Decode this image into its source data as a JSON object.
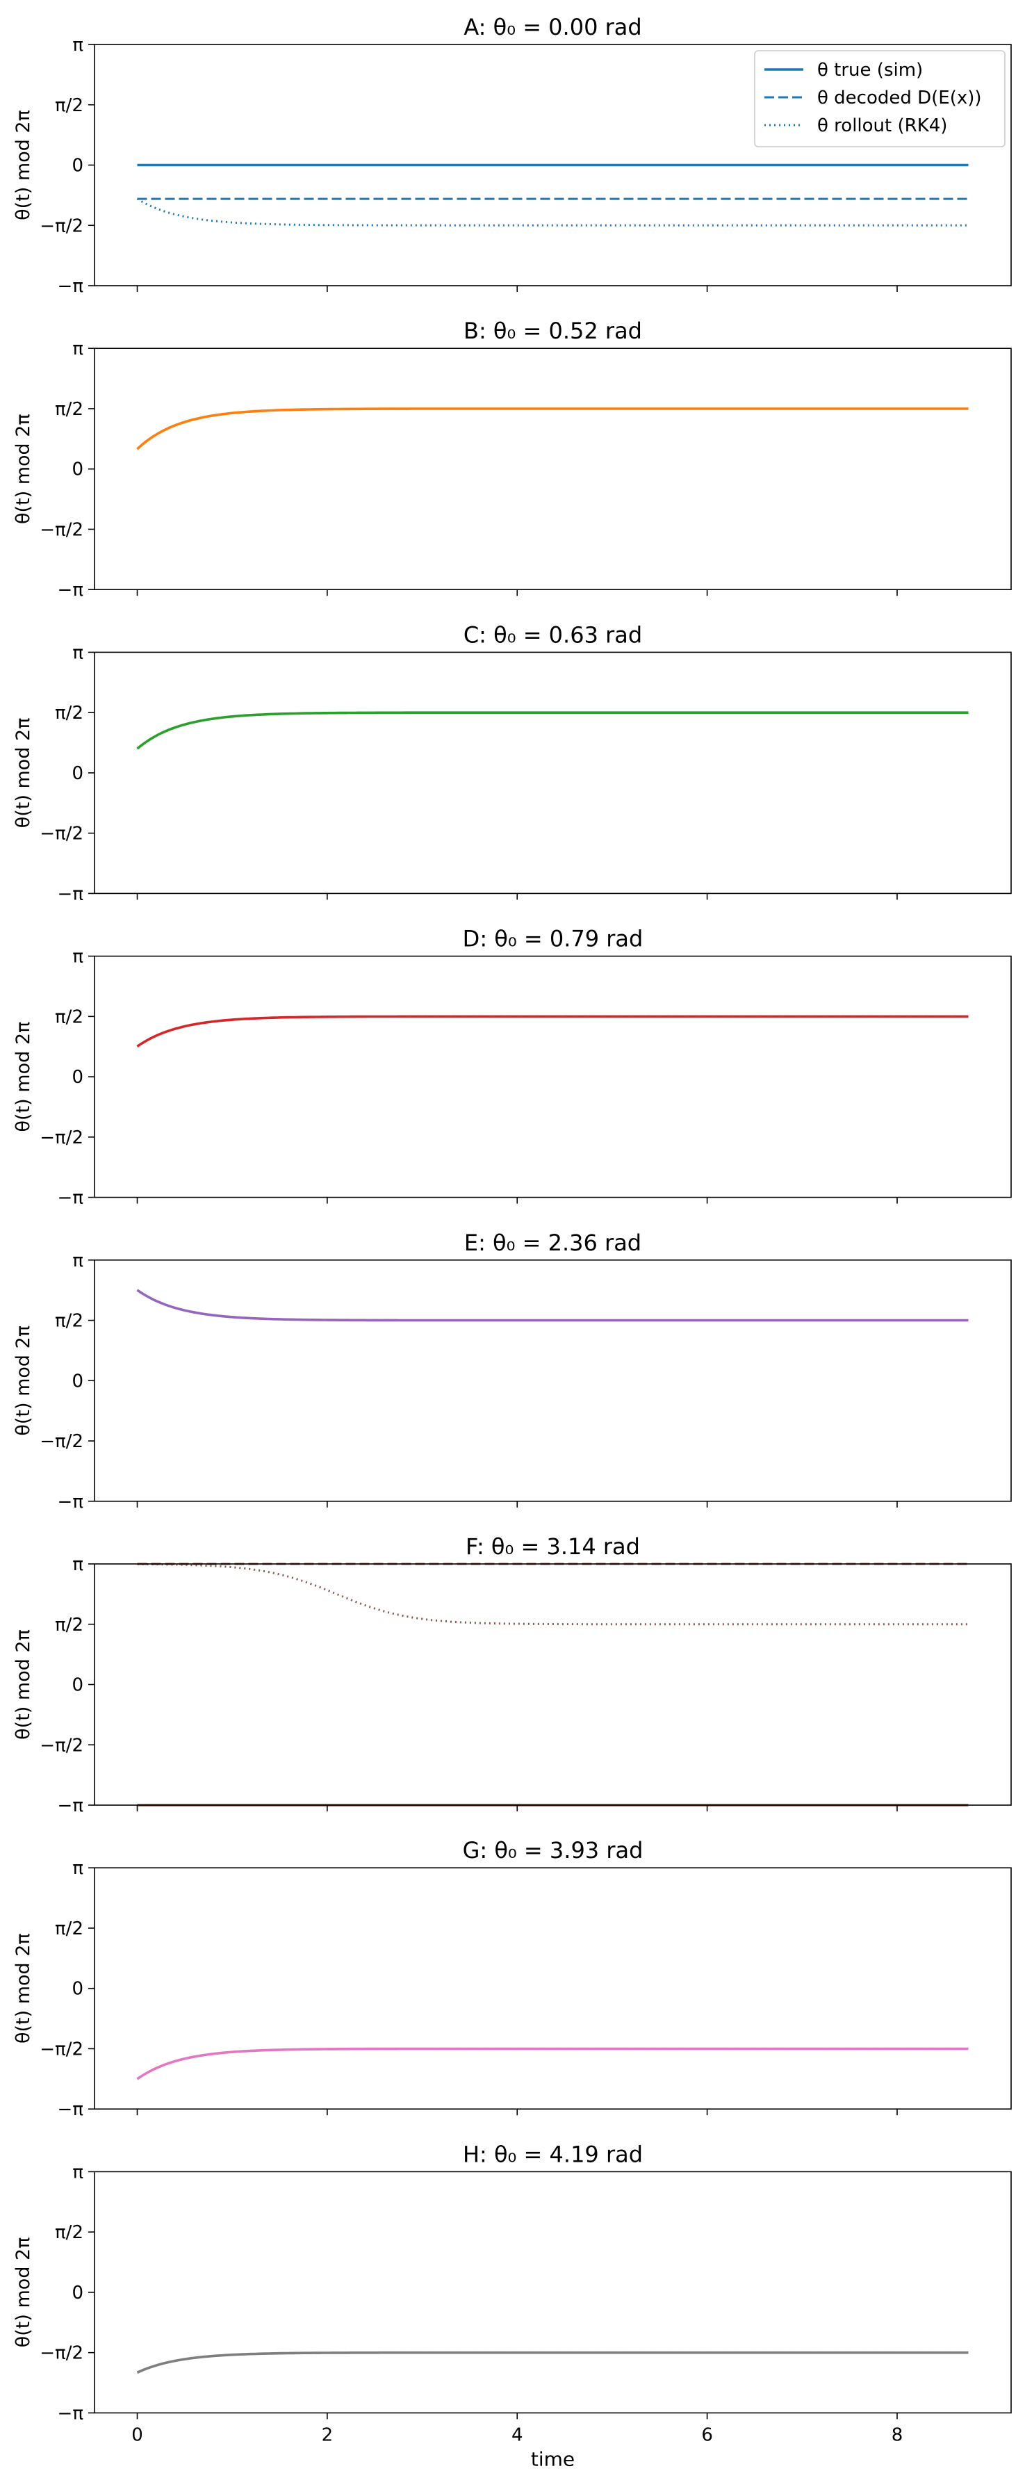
{
  "figure": {
    "xlabel": "time",
    "ylabel": "θ(t) mod 2π",
    "ytick_labels": [
      "−π",
      "−π/2",
      "0",
      "π/2",
      "π"
    ],
    "xtick_labels": [
      "0",
      "2",
      "4",
      "6",
      "8"
    ]
  },
  "legend": {
    "entries": [
      {
        "label": "θ true (sim)",
        "style": "solid"
      },
      {
        "label": "θ decoded D(E(x))",
        "style": "dashed"
      },
      {
        "label": "θ rollout (RK4)",
        "style": "dotted"
      }
    ]
  },
  "chart_data": [
    {
      "type": "line",
      "title": "A: θ₀ = 0.00 rad",
      "xlabel": "time",
      "ylabel": "θ(t) mod 2π",
      "xlim": [
        -0.45,
        9.2
      ],
      "ylim": [
        -3.1416,
        3.1416
      ],
      "yticks": [
        -3.1416,
        -1.5708,
        0,
        1.5708,
        3.1416
      ],
      "xticks": [
        0,
        2,
        4,
        6,
        8
      ],
      "color": "#1f77b4",
      "series": [
        {
          "name": "θ true (sim)",
          "style": "solid",
          "kind": "const",
          "value": 0.0
        },
        {
          "name": "θ decoded D(E(x))",
          "style": "dashed",
          "kind": "const",
          "value": -0.88
        },
        {
          "name": "θ rollout (RK4)",
          "style": "dotted",
          "kind": "relax",
          "y0": -0.88,
          "yf": -1.57,
          "tau": 0.45
        }
      ]
    },
    {
      "type": "line",
      "title": "B: θ₀ = 0.52 rad",
      "xlabel": "time",
      "ylabel": "θ(t) mod 2π",
      "xlim": [
        -0.45,
        9.2
      ],
      "ylim": [
        -3.1416,
        3.1416
      ],
      "yticks": [
        -3.1416,
        -1.5708,
        0,
        1.5708,
        3.1416
      ],
      "xticks": [
        0,
        2,
        4,
        6,
        8
      ],
      "color": "#ff7f0e",
      "series": [
        {
          "name": "θ true (sim)",
          "style": "solid",
          "kind": "relax",
          "y0": 0.52,
          "yf": 1.5708,
          "tau": 0.45
        },
        {
          "name": "θ decoded D(E(x))",
          "style": "dashed",
          "kind": "relax",
          "y0": 0.52,
          "yf": 1.5708,
          "tau": 0.45
        },
        {
          "name": "θ rollout (RK4)",
          "style": "dotted",
          "kind": "relax",
          "y0": 0.52,
          "yf": 1.5708,
          "tau": 0.45
        }
      ]
    },
    {
      "type": "line",
      "title": "C: θ₀ = 0.63 rad",
      "xlabel": "time",
      "ylabel": "θ(t) mod 2π",
      "xlim": [
        -0.45,
        9.2
      ],
      "ylim": [
        -3.1416,
        3.1416
      ],
      "yticks": [
        -3.1416,
        -1.5708,
        0,
        1.5708,
        3.1416
      ],
      "xticks": [
        0,
        2,
        4,
        6,
        8
      ],
      "color": "#2ca02c",
      "series": [
        {
          "name": "θ true (sim)",
          "style": "solid",
          "kind": "relax",
          "y0": 0.63,
          "yf": 1.5708,
          "tau": 0.45
        },
        {
          "name": "θ decoded D(E(x))",
          "style": "dashed",
          "kind": "relax",
          "y0": 0.63,
          "yf": 1.5708,
          "tau": 0.45
        },
        {
          "name": "θ rollout (RK4)",
          "style": "dotted",
          "kind": "relax",
          "y0": 0.63,
          "yf": 1.5708,
          "tau": 0.45
        }
      ]
    },
    {
      "type": "line",
      "title": "D: θ₀ = 0.79 rad",
      "xlabel": "time",
      "ylabel": "θ(t) mod 2π",
      "xlim": [
        -0.45,
        9.2
      ],
      "ylim": [
        -3.1416,
        3.1416
      ],
      "yticks": [
        -3.1416,
        -1.5708,
        0,
        1.5708,
        3.1416
      ],
      "xticks": [
        0,
        2,
        4,
        6,
        8
      ],
      "color": "#d62728",
      "series": [
        {
          "name": "θ true (sim)",
          "style": "solid",
          "kind": "relax",
          "y0": 0.79,
          "yf": 1.5708,
          "tau": 0.45
        },
        {
          "name": "θ decoded D(E(x))",
          "style": "dashed",
          "kind": "relax",
          "y0": 0.79,
          "yf": 1.5708,
          "tau": 0.45
        },
        {
          "name": "θ rollout (RK4)",
          "style": "dotted",
          "kind": "relax",
          "y0": 0.79,
          "yf": 1.5708,
          "tau": 0.45
        }
      ]
    },
    {
      "type": "line",
      "title": "E: θ₀ = 2.36 rad",
      "xlabel": "time",
      "ylabel": "θ(t) mod 2π",
      "xlim": [
        -0.45,
        9.2
      ],
      "ylim": [
        -3.1416,
        3.1416
      ],
      "yticks": [
        -3.1416,
        -1.5708,
        0,
        1.5708,
        3.1416
      ],
      "xticks": [
        0,
        2,
        4,
        6,
        8
      ],
      "color": "#9467bd",
      "series": [
        {
          "name": "θ true (sim)",
          "style": "solid",
          "kind": "relax",
          "y0": 2.36,
          "yf": 1.5708,
          "tau": 0.45
        },
        {
          "name": "θ decoded D(E(x))",
          "style": "dashed",
          "kind": "relax",
          "y0": 2.36,
          "yf": 1.5708,
          "tau": 0.45
        },
        {
          "name": "θ rollout (RK4)",
          "style": "dotted",
          "kind": "relax",
          "y0": 2.36,
          "yf": 1.5708,
          "tau": 0.45
        }
      ]
    },
    {
      "type": "line",
      "title": "F: θ₀ = 3.14 rad",
      "xlabel": "time",
      "ylabel": "θ(t) mod 2π",
      "xlim": [
        -0.45,
        9.2
      ],
      "ylim": [
        -3.1416,
        3.1416
      ],
      "yticks": [
        -3.1416,
        -1.5708,
        0,
        1.5708,
        3.1416
      ],
      "xticks": [
        0,
        2,
        4,
        6,
        8
      ],
      "color": "#8c564b",
      "series": [
        {
          "name": "θ true (sim)",
          "style": "solid",
          "kind": "const",
          "value": -3.1416
        },
        {
          "name": "θ decoded D(E(x))",
          "style": "dashed",
          "kind": "const",
          "value": 3.1416
        },
        {
          "name": "θ rollout (RK4)",
          "style": "dotted",
          "kind": "sigmoid",
          "y0": 3.1416,
          "yf": 1.5708,
          "t0": 2.1,
          "k": 2.6
        }
      ]
    },
    {
      "type": "line",
      "title": "G: θ₀ = 3.93 rad",
      "xlabel": "time",
      "ylabel": "θ(t) mod 2π",
      "xlim": [
        -0.45,
        9.2
      ],
      "ylim": [
        -3.1416,
        3.1416
      ],
      "yticks": [
        -3.1416,
        -1.5708,
        0,
        1.5708,
        3.1416
      ],
      "xticks": [
        0,
        2,
        4,
        6,
        8
      ],
      "color": "#e377c2",
      "series": [
        {
          "name": "θ true (sim)",
          "style": "solid",
          "kind": "relax",
          "y0": -2.36,
          "yf": -1.5708,
          "tau": 0.45
        },
        {
          "name": "θ decoded D(E(x))",
          "style": "dashed",
          "kind": "relax",
          "y0": -2.36,
          "yf": -1.5708,
          "tau": 0.45
        },
        {
          "name": "θ rollout (RK4)",
          "style": "dotted",
          "kind": "relax",
          "y0": -2.36,
          "yf": -1.5708,
          "tau": 0.45
        }
      ]
    },
    {
      "type": "line",
      "title": "H: θ₀ = 4.19 rad",
      "xlabel": "time",
      "ylabel": "θ(t) mod 2π",
      "xlim": [
        -0.45,
        9.2
      ],
      "ylim": [
        -3.1416,
        3.1416
      ],
      "yticks": [
        -3.1416,
        -1.5708,
        0,
        1.5708,
        3.1416
      ],
      "xticks": [
        0,
        2,
        4,
        6,
        8
      ],
      "color": "#7f7f7f",
      "series": [
        {
          "name": "θ true (sim)",
          "style": "solid",
          "kind": "relax",
          "y0": -2.09,
          "yf": -1.5708,
          "tau": 0.45
        },
        {
          "name": "θ decoded D(E(x))",
          "style": "dashed",
          "kind": "relax",
          "y0": -2.09,
          "yf": -1.5708,
          "tau": 0.45
        },
        {
          "name": "θ rollout (RK4)",
          "style": "dotted",
          "kind": "relax",
          "y0": -2.09,
          "yf": -1.5708,
          "tau": 0.45
        }
      ]
    }
  ]
}
